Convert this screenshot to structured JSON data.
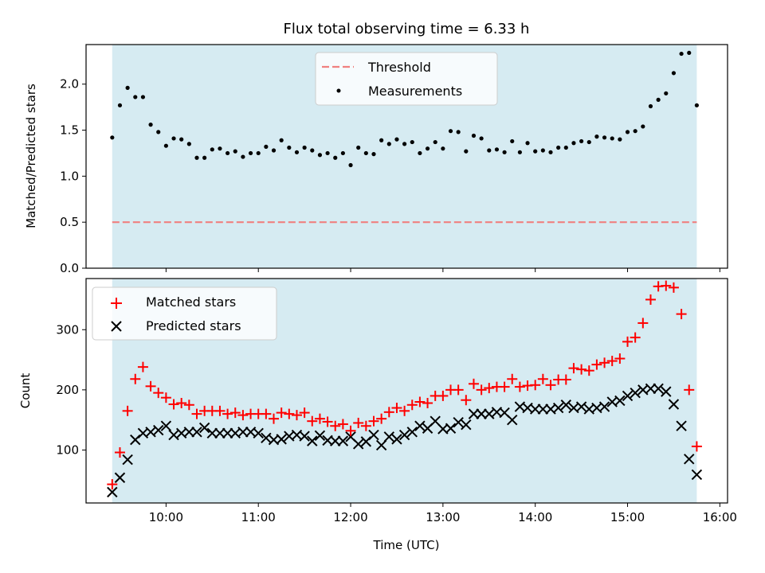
{
  "chart_data": [
    {
      "type": "scatter",
      "title": "Flux total observing time = 6.33 h",
      "xlabel": "",
      "ylabel": "Matched/Predicted stars",
      "ylim": [
        0,
        2.43
      ],
      "yticks": [
        "0.0",
        "0.5",
        "1.0",
        "1.5",
        "2.0"
      ],
      "xlim": [
        "09:08",
        "16:05"
      ],
      "shaded_span": [
        "09:25",
        "15:45"
      ],
      "threshold": 0.5,
      "legend": {
        "placement": "upper center",
        "entries": [
          "Threshold",
          "Measurements"
        ]
      },
      "series": [
        {
          "name": "Measurements",
          "color": "#000000",
          "marker": "dot",
          "x": [
            "09:25",
            "09:30",
            "09:35",
            "09:40",
            "09:45",
            "09:50",
            "09:55",
            "10:00",
            "10:05",
            "10:10",
            "10:15",
            "10:20",
            "10:25",
            "10:30",
            "10:35",
            "10:40",
            "10:45",
            "10:50",
            "10:55",
            "11:00",
            "11:05",
            "11:10",
            "11:15",
            "11:20",
            "11:25",
            "11:30",
            "11:35",
            "11:40",
            "11:45",
            "11:50",
            "11:55",
            "12:00",
            "12:05",
            "12:10",
            "12:15",
            "12:20",
            "12:25",
            "12:30",
            "12:35",
            "12:40",
            "12:45",
            "12:50",
            "12:55",
            "13:00",
            "13:05",
            "13:10",
            "13:15",
            "13:20",
            "13:25",
            "13:30",
            "13:35",
            "13:40",
            "13:45",
            "13:50",
            "13:55",
            "14:00",
            "14:05",
            "14:10",
            "14:15",
            "14:20",
            "14:25",
            "14:30",
            "14:35",
            "14:40",
            "14:45",
            "14:50",
            "14:55",
            "15:00",
            "15:05",
            "15:10",
            "15:15",
            "15:20",
            "15:25",
            "15:30",
            "15:35",
            "15:40",
            "15:45"
          ],
          "y": [
            1.42,
            1.77,
            1.96,
            1.86,
            1.86,
            1.56,
            1.48,
            1.33,
            1.41,
            1.4,
            1.35,
            1.2,
            1.2,
            1.29,
            1.3,
            1.25,
            1.27,
            1.21,
            1.25,
            1.25,
            1.32,
            1.28,
            1.39,
            1.31,
            1.26,
            1.31,
            1.28,
            1.23,
            1.25,
            1.2,
            1.25,
            1.12,
            1.31,
            1.25,
            1.24,
            1.39,
            1.35,
            1.4,
            1.35,
            1.37,
            1.25,
            1.3,
            1.37,
            1.3,
            1.49,
            1.48,
            1.27,
            1.44,
            1.41,
            1.28,
            1.29,
            1.26,
            1.38,
            1.26,
            1.36,
            1.27,
            1.28,
            1.26,
            1.31,
            1.31,
            1.36,
            1.38,
            1.37,
            1.43,
            1.42,
            1.41,
            1.4,
            1.48,
            1.49,
            1.54,
            1.76,
            1.83,
            1.9,
            2.12,
            2.33,
            2.34,
            1.77
          ]
        }
      ]
    },
    {
      "type": "scatter",
      "title": "",
      "xlabel": "Time (UTC)",
      "ylabel": "Count",
      "ylim": [
        12,
        385
      ],
      "yticks": [
        "100",
        "200",
        "300"
      ],
      "xticks": [
        "10:00",
        "11:00",
        "12:00",
        "13:00",
        "14:00",
        "15:00",
        "16:00"
      ],
      "xlim": [
        "09:08",
        "16:05"
      ],
      "shaded_span": [
        "09:25",
        "15:45"
      ],
      "legend": {
        "placement": "upper left",
        "entries": [
          "Matched stars",
          "Predicted stars"
        ]
      },
      "x": [
        "09:25",
        "09:30",
        "09:35",
        "09:40",
        "09:45",
        "09:50",
        "09:55",
        "10:00",
        "10:05",
        "10:10",
        "10:15",
        "10:20",
        "10:25",
        "10:30",
        "10:35",
        "10:40",
        "10:45",
        "10:50",
        "10:55",
        "11:00",
        "11:05",
        "11:10",
        "11:15",
        "11:20",
        "11:25",
        "11:30",
        "11:35",
        "11:40",
        "11:45",
        "11:50",
        "11:55",
        "12:00",
        "12:05",
        "12:10",
        "12:15",
        "12:20",
        "12:25",
        "12:30",
        "12:35",
        "12:40",
        "12:45",
        "12:50",
        "12:55",
        "13:00",
        "13:05",
        "13:10",
        "13:15",
        "13:20",
        "13:25",
        "13:30",
        "13:35",
        "13:40",
        "13:45",
        "13:50",
        "13:55",
        "14:00",
        "14:05",
        "14:10",
        "14:15",
        "14:20",
        "14:25",
        "14:30",
        "14:35",
        "14:40",
        "14:45",
        "14:50",
        "14:55",
        "15:00",
        "15:05",
        "15:10",
        "15:15",
        "15:20",
        "15:25",
        "15:30",
        "15:35",
        "15:40",
        "15:45"
      ],
      "series": [
        {
          "name": "Matched stars",
          "color": "#ff0000",
          "marker": "plus",
          "values": [
            43,
            96,
            165,
            218,
            238,
            206,
            195,
            187,
            176,
            178,
            175,
            160,
            165,
            165,
            165,
            160,
            162,
            158,
            160,
            160,
            160,
            152,
            162,
            160,
            158,
            162,
            148,
            152,
            147,
            140,
            143,
            132,
            145,
            140,
            148,
            152,
            163,
            170,
            165,
            175,
            180,
            178,
            190,
            190,
            200,
            200,
            183,
            210,
            200,
            203,
            205,
            205,
            218,
            205,
            207,
            208,
            218,
            208,
            217,
            217,
            236,
            234,
            232,
            242,
            245,
            248,
            252,
            280,
            287,
            311,
            350,
            372,
            373,
            370,
            326,
            200,
            106
          ]
        },
        {
          "name": "Predicted stars",
          "color": "#000000",
          "marker": "x",
          "values": [
            30,
            54,
            84,
            117,
            128,
            130,
            133,
            140,
            125,
            128,
            130,
            130,
            137,
            128,
            128,
            128,
            128,
            130,
            130,
            128,
            120,
            117,
            118,
            123,
            125,
            123,
            115,
            124,
            116,
            115,
            115,
            122,
            110,
            114,
            125,
            108,
            122,
            118,
            125,
            130,
            140,
            136,
            148,
            135,
            136,
            146,
            142,
            160,
            160,
            160,
            163,
            162,
            150,
            172,
            170,
            168,
            168,
            168,
            170,
            175,
            170,
            172,
            168,
            170,
            172,
            180,
            182,
            190,
            195,
            200,
            202,
            202,
            197,
            176,
            140,
            85,
            59
          ]
        }
      ]
    }
  ]
}
